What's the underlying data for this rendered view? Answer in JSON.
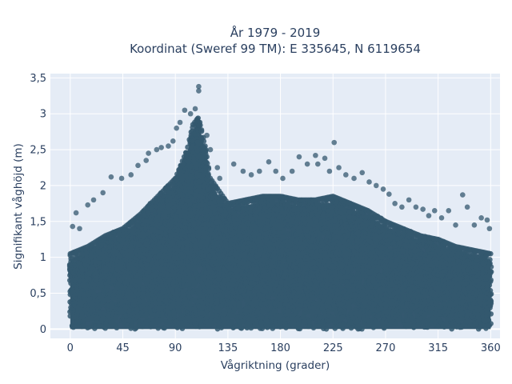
{
  "chart_data": {
    "type": "scatter",
    "title_line1": "År 1979 - 2019",
    "title_line2": "Koordinat (Sweref 99 TM): E 335645, N 6119654",
    "xlabel": "Vågriktning (grader)",
    "ylabel": "Signifikant våghöjd (m)",
    "xlim": [
      -17,
      368
    ],
    "ylim": [
      -0.13,
      3.56
    ],
    "xticks": [
      0,
      45,
      90,
      135,
      180,
      225,
      270,
      315,
      360
    ],
    "xtick_labels": [
      "0",
      "45",
      "90",
      "135",
      "180",
      "225",
      "270",
      "315",
      "360"
    ],
    "yticks": [
      0,
      0.5,
      1,
      1.5,
      2,
      2.5,
      3,
      3.5
    ],
    "ytick_labels": [
      "0",
      "0,5",
      "1",
      "1,5",
      "2",
      "2,5",
      "3",
      "3,5"
    ],
    "grid": true,
    "marker_color": "#34586f",
    "plot_background": "#e5ecf6",
    "envelope_note_free": true,
    "envelope": {
      "x": [
        0,
        15,
        30,
        45,
        60,
        75,
        90,
        100,
        105,
        110,
        115,
        120,
        135,
        150,
        165,
        180,
        195,
        210,
        225,
        240,
        255,
        270,
        285,
        300,
        315,
        330,
        345,
        360
      ],
      "y": [
        1.05,
        1.15,
        1.3,
        1.4,
        1.6,
        1.85,
        2.1,
        2.5,
        2.85,
        2.95,
        2.6,
        2.1,
        1.75,
        1.8,
        1.85,
        1.85,
        1.8,
        1.8,
        1.85,
        1.75,
        1.65,
        1.5,
        1.4,
        1.3,
        1.25,
        1.15,
        1.1,
        1.05
      ]
    },
    "outliers": [
      {
        "x": 110,
        "y": 3.38
      },
      {
        "x": 110,
        "y": 3.32
      },
      {
        "x": 107,
        "y": 3.07
      },
      {
        "x": 98,
        "y": 3.05
      },
      {
        "x": 103,
        "y": 3.0
      },
      {
        "x": 94,
        "y": 2.88
      },
      {
        "x": 91,
        "y": 2.8
      },
      {
        "x": 117,
        "y": 2.7
      },
      {
        "x": 88,
        "y": 2.62
      },
      {
        "x": 84,
        "y": 2.55
      },
      {
        "x": 78,
        "y": 2.53
      },
      {
        "x": 74,
        "y": 2.5
      },
      {
        "x": 67,
        "y": 2.45
      },
      {
        "x": 65,
        "y": 2.35
      },
      {
        "x": 120,
        "y": 2.5
      },
      {
        "x": 126,
        "y": 2.25
      },
      {
        "x": 128,
        "y": 2.1
      },
      {
        "x": 58,
        "y": 2.28
      },
      {
        "x": 52,
        "y": 2.15
      },
      {
        "x": 44,
        "y": 2.1
      },
      {
        "x": 35,
        "y": 2.12
      },
      {
        "x": 28,
        "y": 1.9
      },
      {
        "x": 20,
        "y": 1.8
      },
      {
        "x": 15,
        "y": 1.73
      },
      {
        "x": 5,
        "y": 1.62
      },
      {
        "x": 2,
        "y": 1.43
      },
      {
        "x": 8,
        "y": 1.4
      },
      {
        "x": 140,
        "y": 2.3
      },
      {
        "x": 148,
        "y": 2.2
      },
      {
        "x": 155,
        "y": 2.15
      },
      {
        "x": 162,
        "y": 2.2
      },
      {
        "x": 170,
        "y": 2.33
      },
      {
        "x": 176,
        "y": 2.2
      },
      {
        "x": 182,
        "y": 2.1
      },
      {
        "x": 190,
        "y": 2.2
      },
      {
        "x": 196,
        "y": 2.4
      },
      {
        "x": 203,
        "y": 2.3
      },
      {
        "x": 210,
        "y": 2.42
      },
      {
        "x": 212,
        "y": 2.3
      },
      {
        "x": 218,
        "y": 2.38
      },
      {
        "x": 222,
        "y": 2.2
      },
      {
        "x": 226,
        "y": 2.6
      },
      {
        "x": 230,
        "y": 2.25
      },
      {
        "x": 236,
        "y": 2.15
      },
      {
        "x": 243,
        "y": 2.1
      },
      {
        "x": 250,
        "y": 2.18
      },
      {
        "x": 256,
        "y": 2.05
      },
      {
        "x": 262,
        "y": 2.0
      },
      {
        "x": 268,
        "y": 1.95
      },
      {
        "x": 273,
        "y": 1.88
      },
      {
        "x": 278,
        "y": 1.75
      },
      {
        "x": 284,
        "y": 1.7
      },
      {
        "x": 290,
        "y": 1.8
      },
      {
        "x": 296,
        "y": 1.7
      },
      {
        "x": 302,
        "y": 1.67
      },
      {
        "x": 307,
        "y": 1.58
      },
      {
        "x": 312,
        "y": 1.65
      },
      {
        "x": 318,
        "y": 1.55
      },
      {
        "x": 324,
        "y": 1.65
      },
      {
        "x": 330,
        "y": 1.45
      },
      {
        "x": 336,
        "y": 1.87
      },
      {
        "x": 340,
        "y": 1.7
      },
      {
        "x": 346,
        "y": 1.45
      },
      {
        "x": 352,
        "y": 1.55
      },
      {
        "x": 357,
        "y": 1.52
      },
      {
        "x": 359,
        "y": 1.4
      }
    ]
  }
}
